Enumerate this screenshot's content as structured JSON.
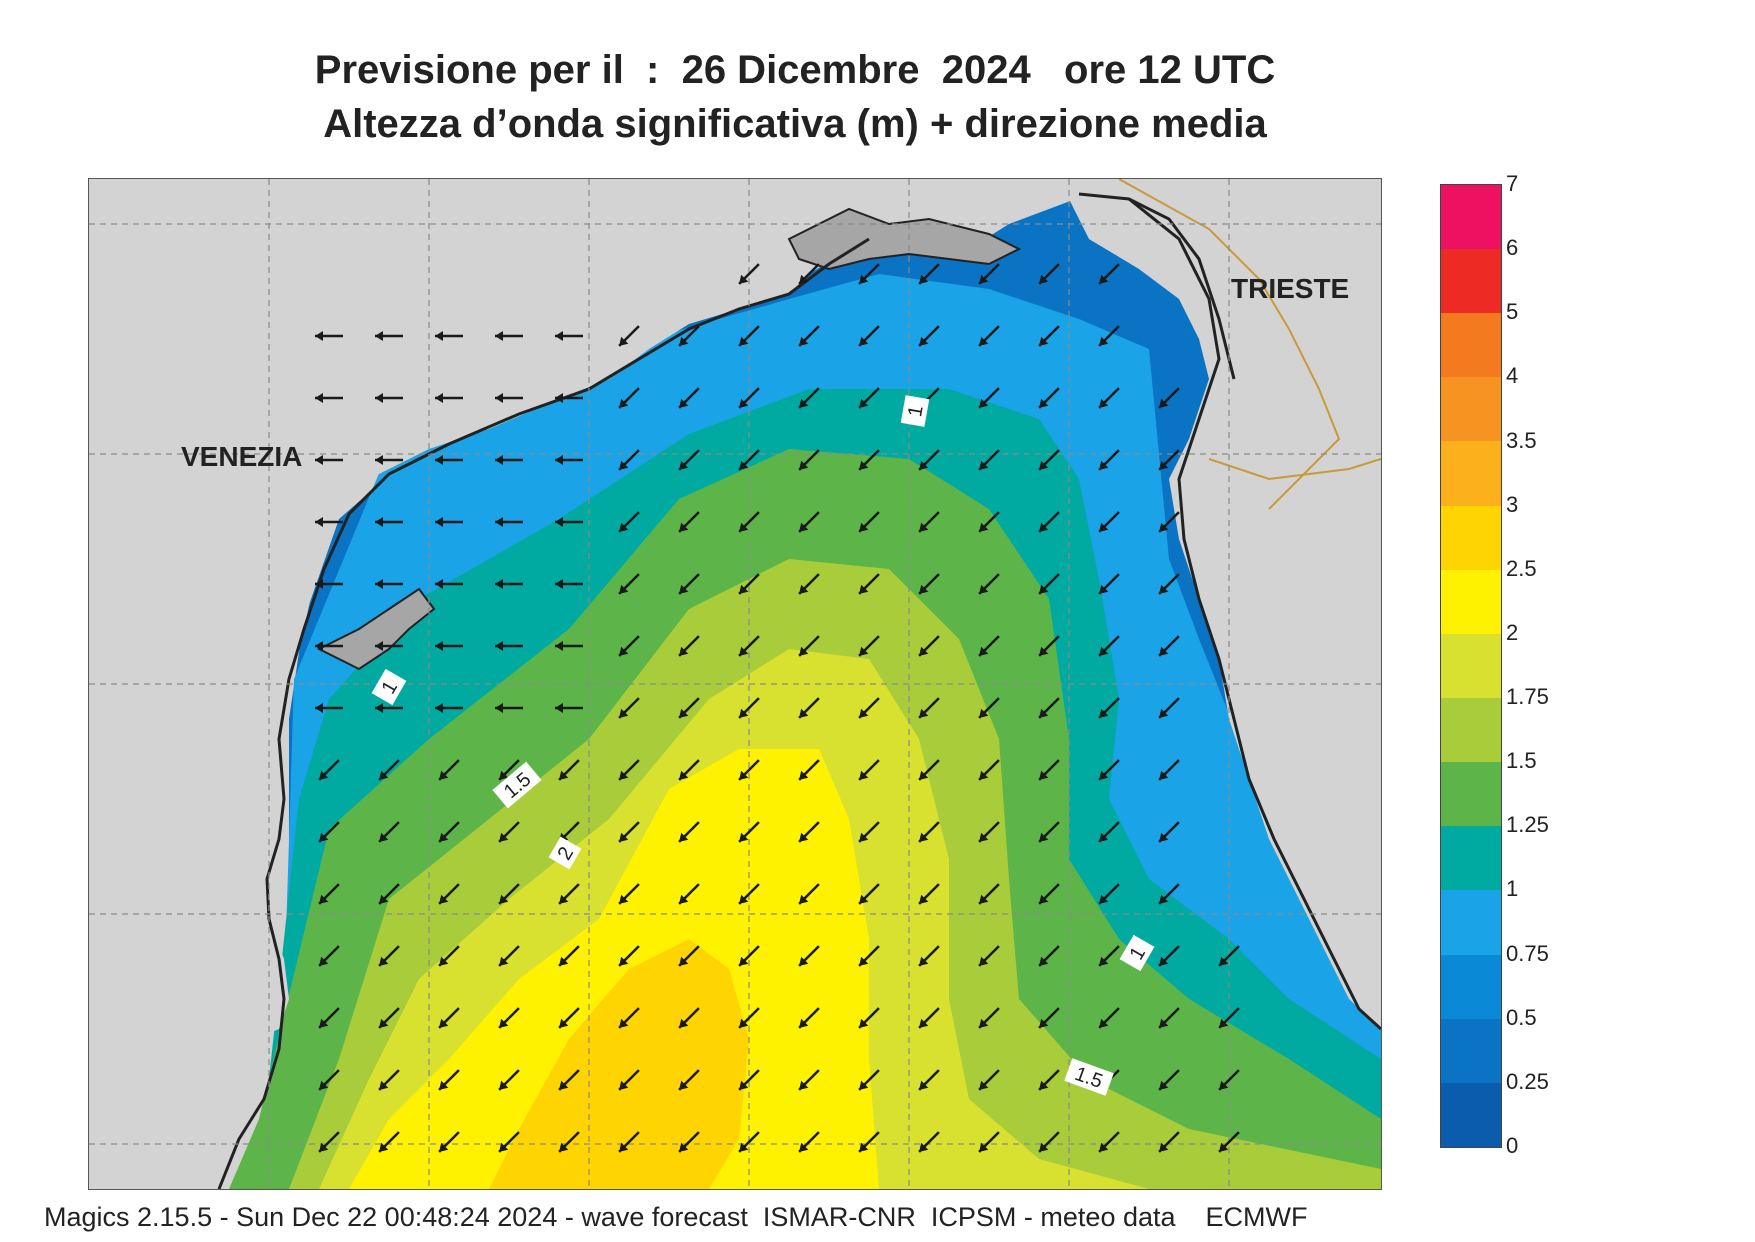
{
  "header": {
    "line1": "Previsione per il  :  26 Dicembre  2024   ore 12 UTC",
    "line2": "Altezza d’onda significativa (m) + direzione media"
  },
  "map": {
    "places": {
      "venezia": "VENEZIA",
      "trieste": "TRIESTE"
    },
    "contour_labels": [
      "1",
      "1",
      "1",
      "1.5",
      "1.5",
      "2"
    ],
    "arrow_direction": "south-west",
    "land_color": "#d3d3d3",
    "border_color": "#c89a3a"
  },
  "colorbar": {
    "ticks": [
      "0",
      "0.25",
      "0.5",
      "0.75",
      "1",
      "1.25",
      "1.5",
      "1.75",
      "2",
      "2.5",
      "3",
      "3.5",
      "4",
      "5",
      "6",
      "7"
    ],
    "colors": [
      "#0b5cad",
      "#0a73c4",
      "#0a8ad6",
      "#1aa3e6",
      "#00aaa0",
      "#5db54a",
      "#a8cc3a",
      "#d8e030",
      "#fff200",
      "#ffd400",
      "#fbb01c",
      "#f79321",
      "#f47a20",
      "#ee2a24",
      "#ec1261"
    ]
  },
  "footer": {
    "text": "Magics 2.15.5 - Sun Dec 22 00:48:24 2024 - wave forecast  ISMAR-CNR  ICPSM - meteo data    ECMWF"
  }
}
